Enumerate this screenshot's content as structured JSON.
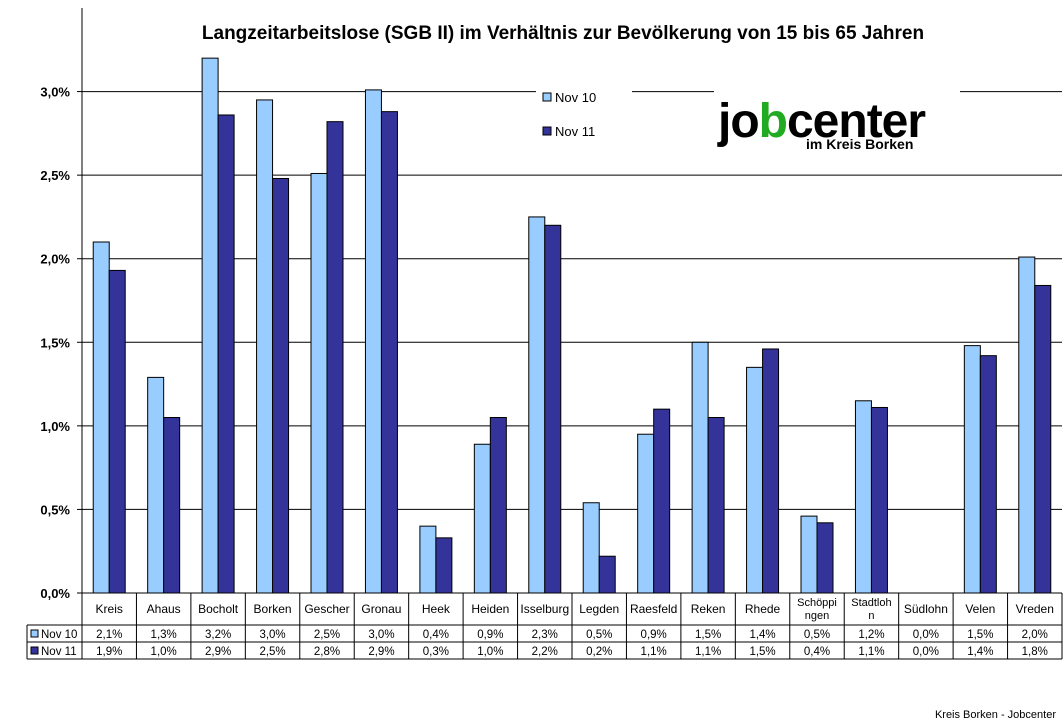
{
  "chart_data": {
    "type": "bar",
    "title": "Langzeitarbeitslose (SGB II) im Verhältnis zur Bevölkerung von 15 bis 65 Jahren",
    "categories": [
      "Kreis",
      "Ahaus",
      "Bocholt",
      "Borken",
      "Gescher",
      "Gronau",
      "Heek",
      "Heiden",
      "Isselburg",
      "Legden",
      "Raesfeld",
      "Reken",
      "Rhede",
      "Schöppingen",
      "Stadtlohn",
      "Südlohn",
      "Velen",
      "Vreden"
    ],
    "category_labels": [
      [
        "Kreis"
      ],
      [
        "Ahaus"
      ],
      [
        "Bocholt"
      ],
      [
        "Borken"
      ],
      [
        "Gescher"
      ],
      [
        "Gronau"
      ],
      [
        "Heek"
      ],
      [
        "Heiden"
      ],
      [
        "Isselburg"
      ],
      [
        "Legden"
      ],
      [
        "Raesfeld"
      ],
      [
        "Reken"
      ],
      [
        "Rhede"
      ],
      [
        "Schöppi",
        "ngen"
      ],
      [
        "Stadtloh",
        "n"
      ],
      [
        "Südlohn"
      ],
      [
        "Velen"
      ],
      [
        "Vreden"
      ]
    ],
    "series": [
      {
        "name": "Nov 10",
        "color": "#99ccff",
        "values": [
          2.1,
          1.29,
          3.2,
          2.95,
          2.51,
          3.01,
          0.4,
          0.89,
          2.25,
          0.54,
          0.95,
          1.5,
          1.35,
          0.46,
          1.15,
          0.0,
          1.48,
          2.01
        ],
        "labels": [
          "2,1%",
          "1,3%",
          "3,2%",
          "3,0%",
          "2,5%",
          "3,0%",
          "0,4%",
          "0,9%",
          "2,3%",
          "0,5%",
          "0,9%",
          "1,5%",
          "1,4%",
          "0,5%",
          "1,2%",
          "0,0%",
          "1,5%",
          "2,0%"
        ]
      },
      {
        "name": "Nov 11",
        "color": "#333399",
        "values": [
          1.93,
          1.05,
          2.86,
          2.48,
          2.82,
          2.88,
          0.33,
          1.05,
          2.2,
          0.22,
          1.1,
          1.05,
          1.46,
          0.42,
          1.11,
          0.0,
          1.42,
          1.84
        ],
        "labels": [
          "1,9%",
          "1,0%",
          "2,9%",
          "2,5%",
          "2,8%",
          "2,9%",
          "0,3%",
          "1,0%",
          "2,2%",
          "0,2%",
          "1,1%",
          "1,1%",
          "1,5%",
          "0,4%",
          "1,1%",
          "0,0%",
          "1,4%",
          "1,8%"
        ]
      }
    ],
    "ylim": [
      0,
      3.5
    ],
    "yticks": [
      0,
      0.5,
      1.0,
      1.5,
      2.0,
      2.5,
      3.0
    ],
    "ytick_labels": [
      "0,0%",
      "0,5%",
      "1,0%",
      "1,5%",
      "2,0%",
      "2,5%",
      "3,0%"
    ],
    "grid": true,
    "legend": "top-center",
    "data_table": true
  },
  "logo": {
    "main": "jobcenter",
    "sub": "im Kreis Borken",
    "color_green": "#22aa22"
  },
  "footer": "Kreis Borken - Jobcenter"
}
